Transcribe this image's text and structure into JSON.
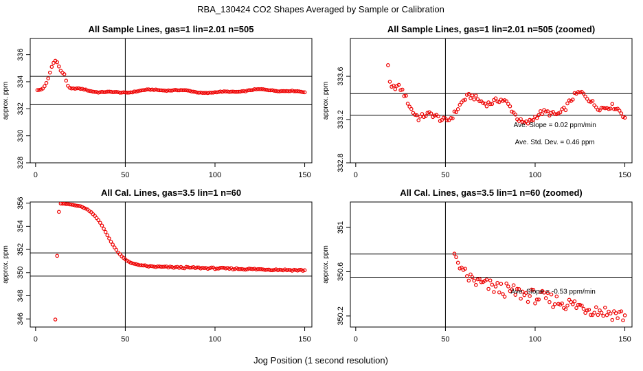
{
  "figure": {
    "title": "RBA_130424  CO2 Shapes Averaged by Sample or Calibration",
    "xlabel": "Jog Position (1 second resolution)"
  },
  "colors": {
    "points": "#ee0000",
    "axes": "#000000"
  },
  "chart_data": [
    {
      "type": "scatter",
      "title": "All Sample Lines, gas=1 lin=2.01 n=505",
      "ylabel": "approx. ppm",
      "xlim": [
        -3,
        154
      ],
      "ylim": [
        328,
        337.2
      ],
      "xticks": [
        0,
        50,
        100,
        150
      ],
      "yticks": [
        328,
        330,
        332,
        334,
        336
      ],
      "hlines": [
        334.4,
        332.3
      ],
      "vlines": [
        50
      ],
      "annotations": [],
      "series": [
        {
          "name": "sample",
          "generator": "sample",
          "x_range": [
            1,
            150
          ]
        }
      ]
    },
    {
      "type": "scatter",
      "title": "All Sample Lines, gas=1 lin=2.01 n=505 (zoomed)",
      "ylabel": "approx. ppm",
      "xlim": [
        -3,
        154
      ],
      "ylim": [
        332.8,
        333.95
      ],
      "xticks": [
        0,
        50,
        100,
        150
      ],
      "yticks": [
        332.8,
        333.2,
        333.6
      ],
      "hlines": [
        333.44,
        333.24
      ],
      "vlines": [
        50
      ],
      "annotations": [
        {
          "text": "Ave. Slope =  0.02  ppm/min",
          "x": 111,
          "y": 333.13
        },
        {
          "text": "Ave. Std. Dev. =  0.46  ppm",
          "x": 111,
          "y": 332.97
        }
      ],
      "series": [
        {
          "name": "sample",
          "generator": "sample",
          "x_range": [
            16,
            150
          ]
        }
      ]
    },
    {
      "type": "scatter",
      "title": "All Cal. Lines, gas=3.5 lin=1 n=60",
      "ylabel": "approx. ppm",
      "xlim": [
        -3,
        154
      ],
      "ylim": [
        345.3,
        356.1
      ],
      "xticks": [
        0,
        50,
        100,
        150
      ],
      "yticks": [
        346,
        348,
        350,
        352,
        354,
        356
      ],
      "hlines": [
        351.7,
        349.7
      ],
      "vlines": [
        50
      ],
      "annotations": [],
      "series": [
        {
          "name": "cal",
          "generator": "cal",
          "x_range": [
            11,
            150
          ],
          "points": [
            [
              11,
              345.95
            ],
            [
              12,
              351.45
            ],
            [
              13,
              355.25
            ]
          ]
        }
      ]
    },
    {
      "type": "scatter",
      "title": "All Cal. Lines, gas=3.5 lin=1 n=60 (zoomed)",
      "ylabel": "approx. ppm",
      "xlim": [
        -3,
        154
      ],
      "ylim": [
        350.1,
        351.23
      ],
      "xticks": [
        0,
        50,
        100,
        150
      ],
      "yticks": [
        350.2,
        350.6,
        351.0
      ],
      "hlines": [
        350.76,
        350.55
      ],
      "vlines": [
        50
      ],
      "annotations": [
        {
          "text": "Ave. Slope =  -0.53  ppm/min",
          "x": 110,
          "y": 350.4
        }
      ],
      "series": [
        {
          "name": "cal",
          "generator": "cal",
          "x_range": [
            55,
            150
          ]
        }
      ]
    }
  ]
}
